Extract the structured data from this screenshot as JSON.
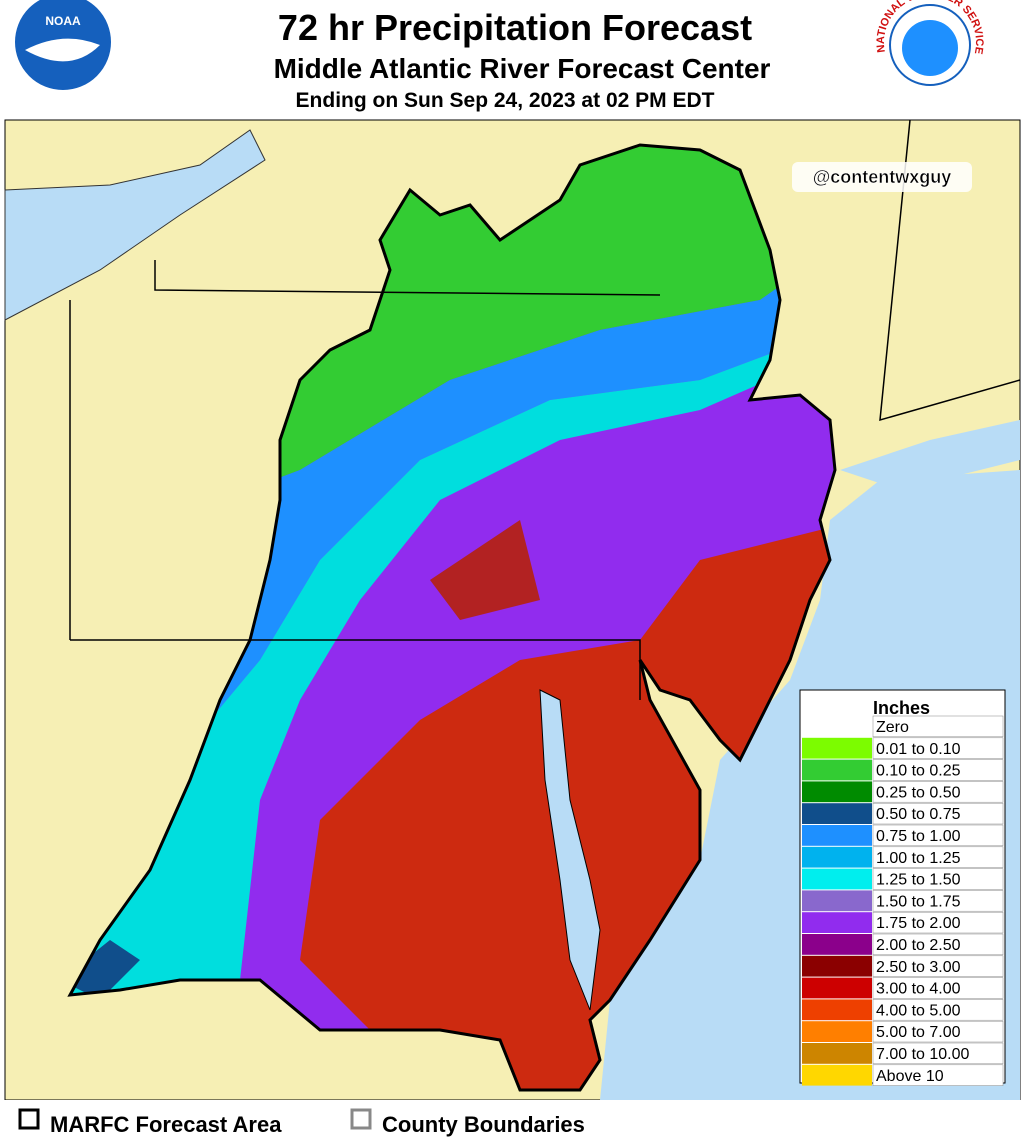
{
  "header": {
    "title": "72 hr Precipitation Forecast",
    "subtitle": "Middle Atlantic River Forecast Center",
    "valid": "Ending on Sun Sep 24, 2023 at 02 PM EDT"
  },
  "logos": {
    "left": "NOAA",
    "right": "NATIONAL WEATHER SERVICE"
  },
  "watermark": "@contentwxguy",
  "legend": {
    "title": "Inches",
    "items": [
      {
        "label": "Zero",
        "color": "#ffffff"
      },
      {
        "label": "0.01 to 0.10",
        "color": "#7cfc00"
      },
      {
        "label": "0.10 to 0.25",
        "color": "#33cc33"
      },
      {
        "label": "0.25 to 0.50",
        "color": "#008b00"
      },
      {
        "label": "0.50 to 0.75",
        "color": "#104e8b"
      },
      {
        "label": "0.75 to 1.00",
        "color": "#1e90ff"
      },
      {
        "label": "1.00 to 1.25",
        "color": "#00b2ee"
      },
      {
        "label": "1.25 to 1.50",
        "color": "#00eeee"
      },
      {
        "label": "1.50 to 1.75",
        "color": "#8968cd"
      },
      {
        "label": "1.75 to 2.00",
        "color": "#912cee"
      },
      {
        "label": "2.00 to 2.50",
        "color": "#8b008b"
      },
      {
        "label": "2.50 to 3.00",
        "color": "#8b0000"
      },
      {
        "label": "3.00 to 4.00",
        "color": "#cd0000"
      },
      {
        "label": "4.00 to 5.00",
        "color": "#ee4000"
      },
      {
        "label": "5.00 to 7.00",
        "color": "#ff7f00"
      },
      {
        "label": "7.00 to 10.00",
        "color": "#cd8500"
      },
      {
        "label": "Above 10",
        "color": "#ffd700"
      }
    ]
  },
  "footer": {
    "items": [
      "MARFC Forecast Area",
      "County Boundaries"
    ]
  }
}
